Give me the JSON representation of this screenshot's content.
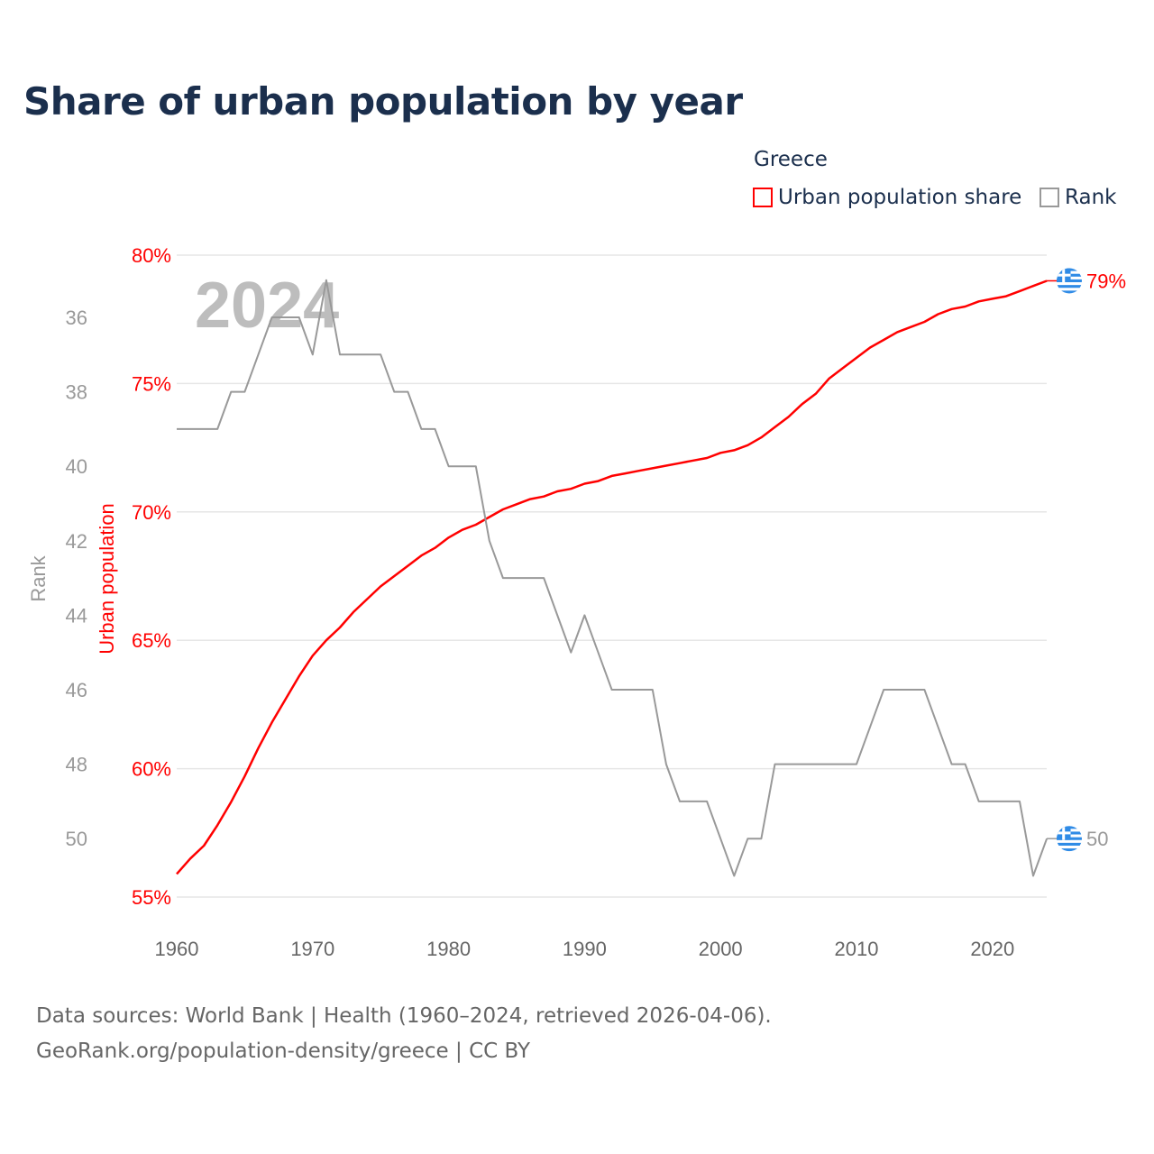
{
  "title": "Share of urban population by year",
  "legend": {
    "title": "Greece",
    "items": [
      {
        "label": "Urban population share",
        "color": "#ff0000"
      },
      {
        "label": "Rank",
        "color": "#999999"
      }
    ]
  },
  "footer": [
    "Data sources: World Bank | Health (1960–2024, retrieved 2026-04-06).",
    "GeoRank.org/population-density/greece | CC BY"
  ],
  "chart_data": {
    "type": "line",
    "title": "Share of urban population by year",
    "year_watermark": "2024",
    "xlabel": "",
    "x_ticks": [
      "1960",
      "1970",
      "1980",
      "1990",
      "2000",
      "2010",
      "2020"
    ],
    "xlim": [
      1960,
      2024
    ],
    "y_left_label": "Urban population",
    "y_left_ticks": [
      "55%",
      "60%",
      "65%",
      "70%",
      "75%",
      "80%"
    ],
    "y_left_lim": [
      55,
      80
    ],
    "y_rank_label": "Rank",
    "y_rank_ticks": [
      "36",
      "38",
      "40",
      "42",
      "44",
      "46",
      "48",
      "50"
    ],
    "y_rank_lim": [
      36,
      50
    ],
    "x": [
      1960,
      1961,
      1962,
      1963,
      1964,
      1965,
      1966,
      1967,
      1968,
      1969,
      1970,
      1971,
      1972,
      1973,
      1974,
      1975,
      1976,
      1977,
      1978,
      1979,
      1980,
      1981,
      1982,
      1983,
      1984,
      1985,
      1986,
      1987,
      1988,
      1989,
      1990,
      1991,
      1992,
      1993,
      1994,
      1995,
      1996,
      1997,
      1998,
      1999,
      2000,
      2001,
      2002,
      2003,
      2004,
      2005,
      2006,
      2007,
      2008,
      2009,
      2010,
      2011,
      2012,
      2013,
      2014,
      2015,
      2016,
      2017,
      2018,
      2019,
      2020,
      2021,
      2022,
      2023,
      2024
    ],
    "series": [
      {
        "name": "Urban population share",
        "color": "#ff0000",
        "end_label": "79%",
        "values": [
          55.9,
          56.5,
          57.0,
          57.8,
          58.7,
          59.7,
          60.8,
          61.8,
          62.7,
          63.6,
          64.4,
          65.0,
          65.5,
          66.1,
          66.6,
          67.1,
          67.5,
          67.9,
          68.3,
          68.6,
          69.0,
          69.3,
          69.5,
          69.8,
          70.1,
          70.3,
          70.5,
          70.6,
          70.8,
          70.9,
          71.1,
          71.2,
          71.4,
          71.5,
          71.6,
          71.7,
          71.8,
          71.9,
          72.0,
          72.1,
          72.3,
          72.4,
          72.6,
          72.9,
          73.3,
          73.7,
          74.2,
          74.6,
          75.2,
          75.6,
          76.0,
          76.4,
          76.7,
          77.0,
          77.2,
          77.4,
          77.7,
          77.9,
          78.0,
          78.2,
          78.3,
          78.4,
          78.6,
          78.8,
          79.0
        ]
      },
      {
        "name": "Rank",
        "color": "#999999",
        "end_label": "50",
        "values": [
          39,
          39,
          39,
          39,
          38,
          38,
          37,
          36,
          36,
          36,
          37,
          35,
          37,
          37,
          37,
          37,
          38,
          38,
          39,
          39,
          40,
          40,
          40,
          42,
          43,
          43,
          43,
          43,
          44,
          45,
          44,
          45,
          46,
          46,
          46,
          46,
          48,
          49,
          49,
          49,
          50,
          51,
          50,
          50,
          48,
          48,
          48,
          48,
          48,
          48,
          48,
          47,
          46,
          46,
          46,
          46,
          47,
          48,
          48,
          49,
          49,
          49,
          49,
          51,
          50
        ]
      }
    ]
  }
}
